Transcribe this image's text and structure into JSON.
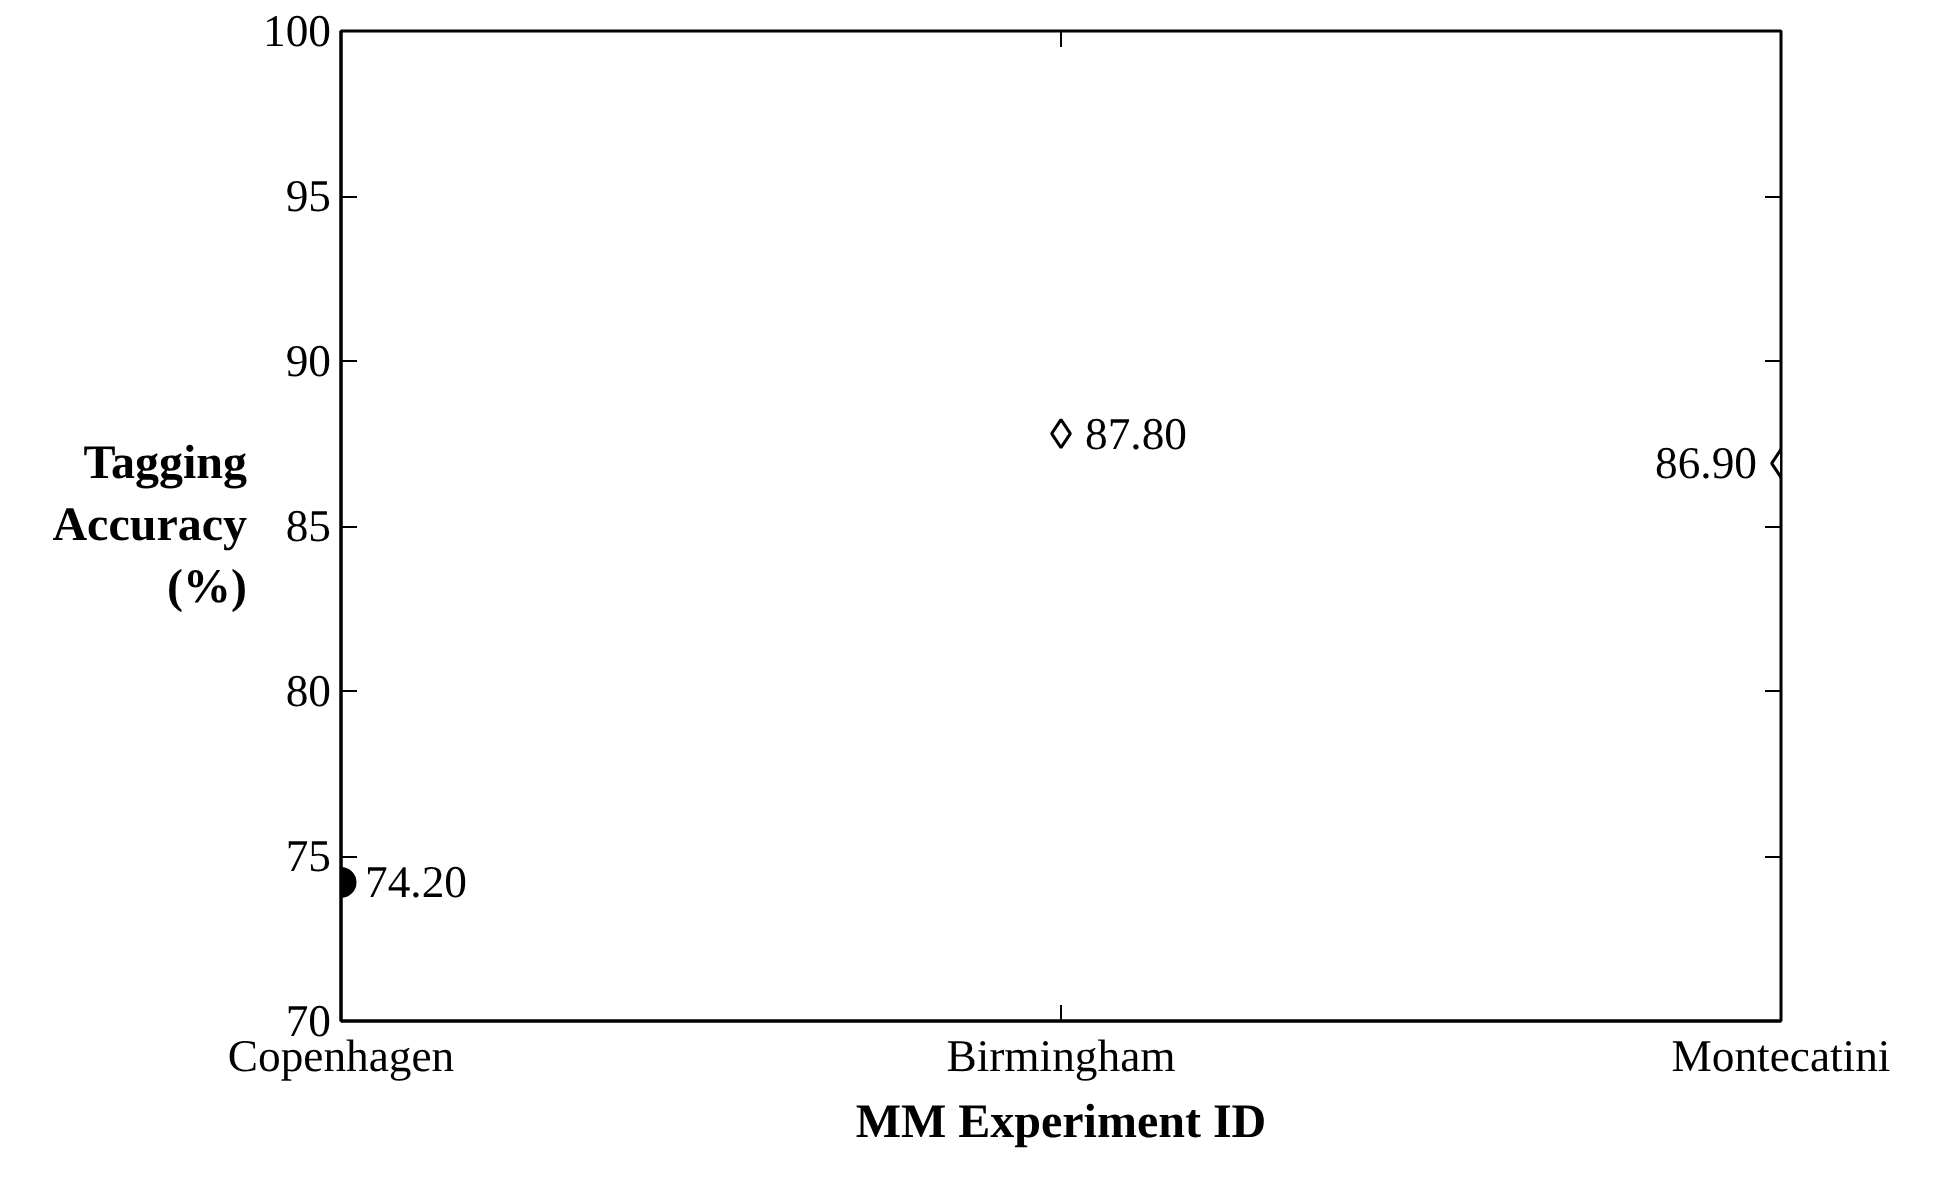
{
  "chart_data": {
    "type": "scatter",
    "xlabel": "MM Experiment ID",
    "ylabel": "Tagging Accuracy (%)",
    "categories": [
      "Copenhagen",
      "Birmingham",
      "Montecatini"
    ],
    "series": [
      {
        "color": "#000000",
        "marker": "circle",
        "values": [
          74.2,
          null,
          null
        ],
        "value_labels": [
          "74.20",
          null,
          null
        ]
      },
      {
        "color": "#000000",
        "marker": "diamond",
        "values": [
          null,
          87.8,
          86.9
        ],
        "value_labels": [
          null,
          "87.80",
          "86.90"
        ]
      }
    ],
    "ylim": [
      70,
      100
    ],
    "yticks": [
      70,
      75,
      80,
      85,
      90,
      95,
      100
    ],
    "grid": false
  }
}
